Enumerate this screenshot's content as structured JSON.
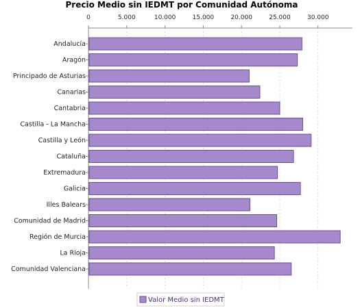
{
  "chart_data": {
    "type": "bar",
    "orientation": "horizontal",
    "title": "Precio Medio sin IEDMT por Comunidad Autónoma",
    "xlabel": "",
    "ylabel": "",
    "xlim": [
      0,
      34500
    ],
    "xticks": [
      0,
      5000,
      10000,
      15000,
      20000,
      25000,
      30000
    ],
    "xtick_labels": [
      "0",
      "5.000",
      "10.000",
      "15.000",
      "20.000",
      "25.000",
      "30.000"
    ],
    "categories": [
      "Andalucía",
      "Aragón",
      "Principado de Asturias",
      "Canarias",
      "Cantabria",
      "Castilla - La Mancha",
      "Castilla y León",
      "Cataluña",
      "Extremadura",
      "Galicia",
      "Illes Balears",
      "Comunidad de Madrid",
      "Región de Murcia",
      "La Rioja",
      "Comunidad Valenciana"
    ],
    "series": [
      {
        "name": "Valor Medio sin IEDMT",
        "values": [
          27900,
          27300,
          21000,
          22400,
          25000,
          28000,
          29100,
          26800,
          24700,
          27700,
          21100,
          24600,
          32900,
          24300,
          26500
        ]
      }
    ],
    "grid": {
      "vertical": true,
      "horizontal": false
    },
    "legend": {
      "position": "bottom-center",
      "label": "Valor Medio sin IEDMT"
    },
    "colors": {
      "bar_fill": "#a589cc",
      "bar_stroke": "#6a4e98",
      "axis": "#888888",
      "grid": "#d9d9d9",
      "legend_text": "#4b2a78"
    }
  }
}
